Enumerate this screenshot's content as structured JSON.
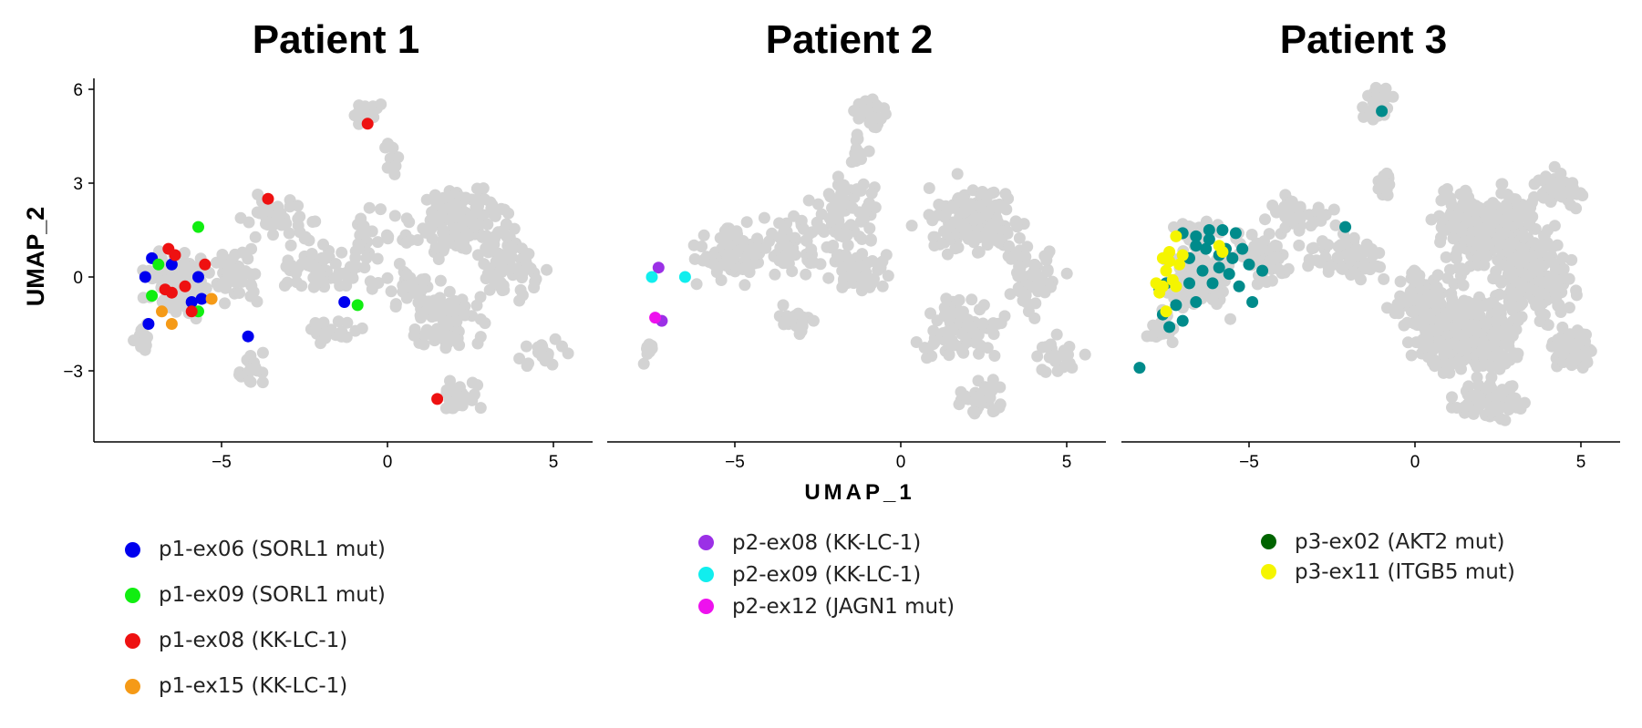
{
  "chart_data": [
    {
      "type": "scatter",
      "title": "Patient 1",
      "xlabel": "",
      "ylabel": "UMAP_2",
      "xlim": [
        -9,
        6.2
      ],
      "ylim": [
        -5.5,
        6.2
      ],
      "x_ticks": [
        -5,
        0,
        5
      ],
      "y_ticks": [
        6,
        3,
        0,
        -3
      ],
      "x_tick_labels": [
        "−5",
        "0",
        "5"
      ],
      "y_tick_labels": [
        "6",
        "3",
        "0",
        "−3"
      ],
      "background_color": "#d3d3d3",
      "series": [
        {
          "name": "p1-ex06 (SORL1 mut)",
          "color": "#0000ee",
          "points": [
            [
              -7.1,
              0.6
            ],
            [
              -7.3,
              0.0
            ],
            [
              -7.2,
              -1.5
            ],
            [
              -6.5,
              0.4
            ],
            [
              -5.7,
              0.0
            ],
            [
              -5.9,
              -0.8
            ],
            [
              -5.6,
              -0.7
            ],
            [
              -4.2,
              -1.9
            ],
            [
              -1.3,
              -0.8
            ]
          ]
        },
        {
          "name": "p1-ex09 (SORL1 mut)",
          "color": "#11ee11",
          "points": [
            [
              -6.9,
              0.4
            ],
            [
              -7.1,
              -0.6
            ],
            [
              -5.7,
              1.6
            ],
            [
              -5.7,
              -1.1
            ],
            [
              -0.9,
              -0.9
            ]
          ]
        },
        {
          "name": "p1-ex08 (KK-LC-1)",
          "color": "#ee1111",
          "points": [
            [
              -6.6,
              0.9
            ],
            [
              -6.4,
              0.7
            ],
            [
              -6.7,
              -0.4
            ],
            [
              -6.5,
              -0.5
            ],
            [
              -6.1,
              -0.3
            ],
            [
              -5.5,
              0.4
            ],
            [
              -5.9,
              -1.1
            ],
            [
              -3.6,
              2.5
            ],
            [
              -0.6,
              4.9
            ],
            [
              1.5,
              -3.9
            ]
          ]
        },
        {
          "name": "p1-ex15 (KK-LC-1)",
          "color": "#f59a17",
          "points": [
            [
              -6.8,
              -1.1
            ],
            [
              -6.5,
              -1.5
            ],
            [
              -5.3,
              -0.7
            ]
          ]
        }
      ]
    },
    {
      "type": "scatter",
      "title": "Patient 2",
      "xlabel": "UMAP_1",
      "ylabel": "",
      "xlim": [
        -9,
        6.2
      ],
      "ylim": [
        -5.5,
        6.2
      ],
      "x_ticks": [
        -5,
        0,
        5
      ],
      "x_tick_labels": [
        "−5",
        "0",
        "5"
      ],
      "background_color": "#d3d3d3",
      "series": [
        {
          "name": "p2-ex08 (KK-LC-1)",
          "color": "#9b30e6",
          "points": [
            [
              -7.3,
              0.3
            ],
            [
              -7.2,
              -1.4
            ]
          ]
        },
        {
          "name": "p2-ex09 (KK-LC-1)",
          "color": "#11eeee",
          "points": [
            [
              -7.5,
              0.0
            ],
            [
              -6.5,
              0.0
            ]
          ]
        },
        {
          "name": "p2-ex12 (JAGN1 mut)",
          "color": "#ee11ee",
          "points": [
            [
              -7.4,
              -1.3
            ]
          ]
        }
      ]
    },
    {
      "type": "scatter",
      "title": "Patient 3",
      "xlabel": "",
      "ylabel": "",
      "xlim": [
        -9,
        6.2
      ],
      "ylim": [
        -5.5,
        6.2
      ],
      "x_ticks": [
        -5,
        0,
        5
      ],
      "x_tick_labels": [
        "−5",
        "0",
        "5"
      ],
      "background_color": "#d3d3d3",
      "series": [
        {
          "name": "p3-ex02 (AKT2 mut)",
          "color": "#008b8b",
          "points": [
            [
              -8.3,
              -2.9
            ],
            [
              -1.0,
              5.3
            ],
            [
              -2.1,
              1.6
            ],
            [
              -4.6,
              0.2
            ],
            [
              -4.9,
              -0.8
            ],
            [
              -7.0,
              1.4
            ],
            [
              -6.6,
              1.3
            ],
            [
              -6.2,
              1.5
            ],
            [
              -5.8,
              1.5
            ],
            [
              -5.4,
              1.4
            ],
            [
              -5.2,
              0.9
            ],
            [
              -5.5,
              0.6
            ],
            [
              -5.9,
              0.3
            ],
            [
              -6.3,
              0.9
            ],
            [
              -6.8,
              0.6
            ],
            [
              -7.5,
              -0.2
            ],
            [
              -7.2,
              -0.9
            ],
            [
              -7.6,
              -1.2
            ],
            [
              -7.0,
              -1.4
            ],
            [
              -6.6,
              -0.8
            ],
            [
              -6.1,
              -0.2
            ],
            [
              -5.6,
              0.1
            ],
            [
              -5.3,
              -0.3
            ],
            [
              -5.7,
              0.9
            ],
            [
              -6.4,
              0.2
            ],
            [
              -7.7,
              -0.4
            ],
            [
              -7.4,
              -1.6
            ],
            [
              -6.8,
              -0.2
            ],
            [
              -5.9,
              0.7
            ],
            [
              -6.6,
              1.0
            ],
            [
              -5.0,
              0.4
            ],
            [
              -6.2,
              1.2
            ]
          ]
        },
        {
          "name": "p3-ex11 (ITGB5 mut)",
          "color": "#f5f500",
          "points": [
            [
              -7.6,
              0.6
            ],
            [
              -7.4,
              0.8
            ],
            [
              -7.2,
              1.3
            ],
            [
              -7.0,
              0.7
            ],
            [
              -7.5,
              0.2
            ],
            [
              -7.3,
              -0.1
            ],
            [
              -7.7,
              -0.5
            ],
            [
              -7.8,
              -0.2
            ],
            [
              -7.5,
              -1.1
            ],
            [
              -7.1,
              0.4
            ],
            [
              -5.9,
              1.0
            ],
            [
              -5.8,
              0.8
            ],
            [
              -7.2,
              -0.3
            ],
            [
              -7.4,
              0.5
            ],
            [
              -7.6,
              -0.3
            ]
          ]
        }
      ]
    }
  ]
}
